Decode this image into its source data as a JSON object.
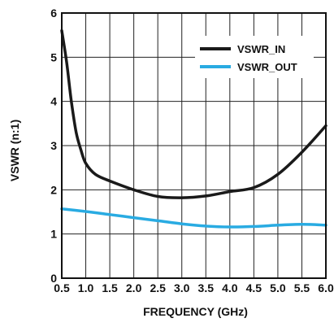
{
  "chart_data": {
    "type": "line",
    "xlabel": "FREQUENCY (GHz)",
    "ylabel": "VSWR (n:1)",
    "xlim": [
      0.5,
      6.0
    ],
    "ylim": [
      0,
      6
    ],
    "x_ticks": [
      "0.5",
      "1.0",
      "1.5",
      "2.0",
      "2.5",
      "3.0",
      "3.5",
      "4.0",
      "4.5",
      "5.0",
      "5.5",
      "6.0"
    ],
    "y_ticks": [
      "0",
      "1",
      "2",
      "3",
      "4",
      "5",
      "6"
    ],
    "grid": true,
    "legend_position": "top-right",
    "series": [
      {
        "name": "VSWR_IN",
        "color": "#1a1a1a",
        "x": [
          0.5,
          0.6,
          0.7,
          0.8,
          0.9,
          1.0,
          1.2,
          1.5,
          2.0,
          2.5,
          3.0,
          3.5,
          4.0,
          4.5,
          5.0,
          5.5,
          6.0
        ],
        "y": [
          5.6,
          4.9,
          4.0,
          3.3,
          2.9,
          2.6,
          2.35,
          2.2,
          2.0,
          1.85,
          1.82,
          1.86,
          1.96,
          2.05,
          2.35,
          2.85,
          3.45
        ]
      },
      {
        "name": "VSWR_OUT",
        "color": "#29abe2",
        "x": [
          0.5,
          1.0,
          1.5,
          2.0,
          2.5,
          3.0,
          3.5,
          4.0,
          4.5,
          5.0,
          5.5,
          6.0
        ],
        "y": [
          1.57,
          1.51,
          1.44,
          1.37,
          1.3,
          1.23,
          1.18,
          1.16,
          1.17,
          1.2,
          1.22,
          1.2
        ]
      }
    ]
  }
}
